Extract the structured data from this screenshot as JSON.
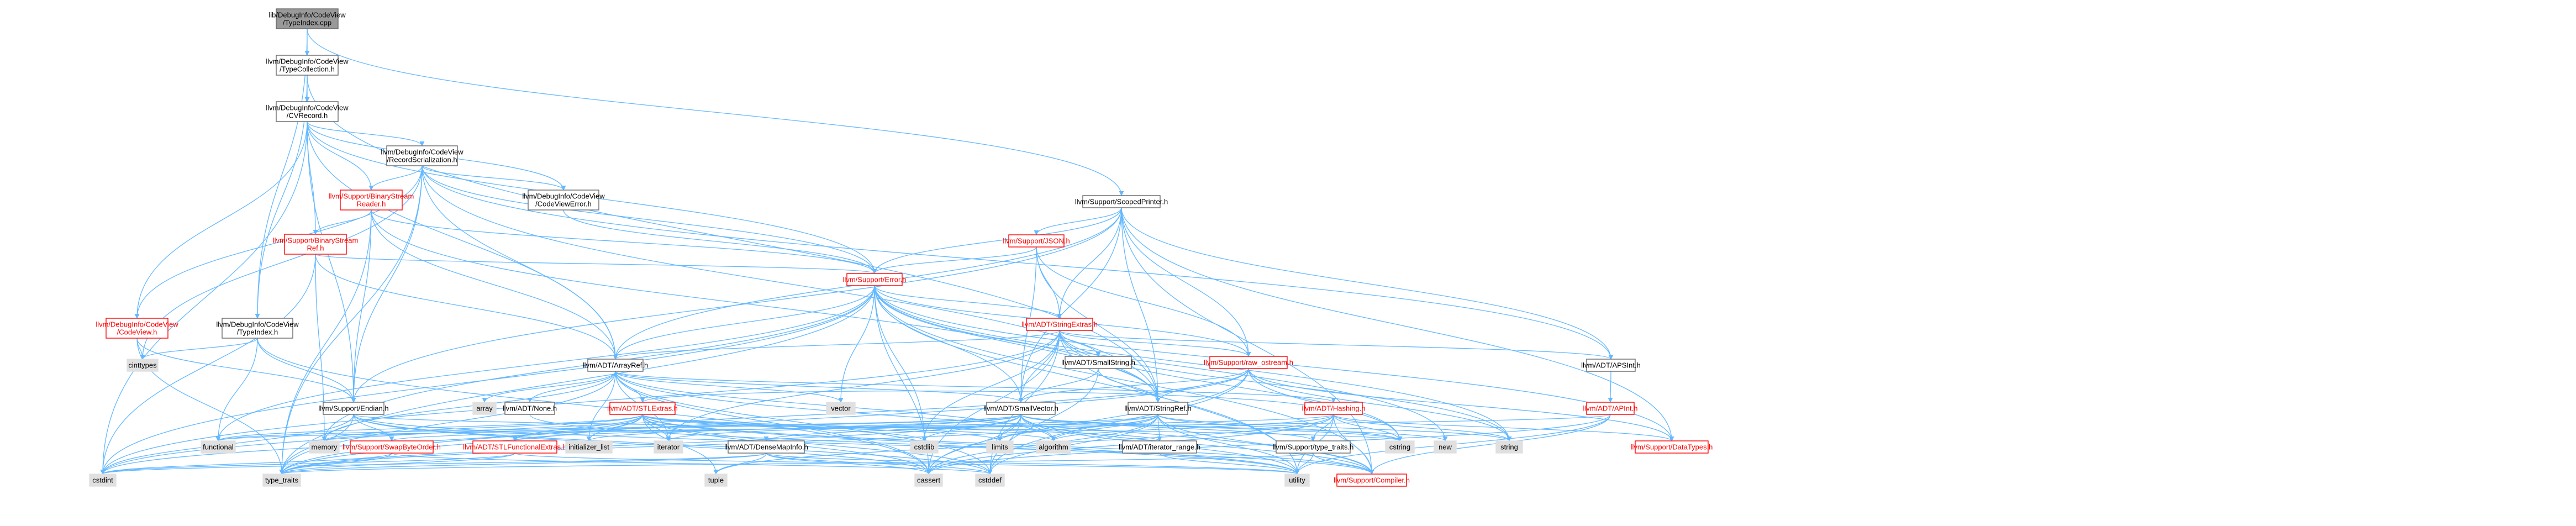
{
  "colors": {
    "edge": "#63b8ff",
    "node_border": "#666666",
    "root_fill": "#999999",
    "gray_fill": "#e0e0e0",
    "red_text": "#ff0000",
    "red_border": "#ff0000"
  },
  "nodes": [
    {
      "id": "root",
      "label": [
        "lib/DebugInfo/CodeView",
        "/TypeIndex.cpp"
      ],
      "style": "root"
    },
    {
      "id": "typecollection",
      "label": [
        "llvm/DebugInfo/CodeView",
        "/TypeCollection.h"
      ],
      "style": "normal"
    },
    {
      "id": "cvrecord",
      "label": [
        "llvm/DebugInfo/CodeView",
        "/CVRecord.h"
      ],
      "style": "normal"
    },
    {
      "id": "recordserialization",
      "label": [
        "llvm/DebugInfo/CodeView",
        "/RecordSerialization.h"
      ],
      "style": "normal"
    },
    {
      "id": "binarystreamreader",
      "label": [
        "llvm/Support/BinaryStream",
        "Reader.h"
      ],
      "style": "red"
    },
    {
      "id": "codeviewerror",
      "label": [
        "llvm/DebugInfo/CodeView",
        "/CodeViewError.h"
      ],
      "style": "normal"
    },
    {
      "id": "scopedprinter",
      "label": [
        "llvm/Support/ScopedPrinter.h"
      ],
      "style": "normal"
    },
    {
      "id": "binarystreamref",
      "label": [
        "llvm/Support/BinaryStream",
        "Ref.h"
      ],
      "style": "red"
    },
    {
      "id": "json",
      "label": [
        "llvm/Support/JSON.h"
      ],
      "style": "red"
    },
    {
      "id": "error",
      "label": [
        "llvm/Support/Error.h"
      ],
      "style": "red"
    },
    {
      "id": "codeview",
      "label": [
        "llvm/DebugInfo/CodeView",
        "/CodeView.h"
      ],
      "style": "red"
    },
    {
      "id": "typeindex",
      "label": [
        "llvm/DebugInfo/CodeView",
        "/TypeIndex.h"
      ],
      "style": "normal"
    },
    {
      "id": "stringextras",
      "label": [
        "llvm/ADT/StringExtras.h"
      ],
      "style": "red"
    },
    {
      "id": "smallstring",
      "label": [
        "llvm/ADT/SmallString.h"
      ],
      "style": "normal"
    },
    {
      "id": "arrayref",
      "label": [
        "llvm/ADT/ArrayRef.h"
      ],
      "style": "normal"
    },
    {
      "id": "raw_ostream",
      "label": [
        "llvm/Support/raw_ostream.h"
      ],
      "style": "red"
    },
    {
      "id": "apsint",
      "label": [
        "llvm/ADT/APSInt.h"
      ],
      "style": "normal"
    },
    {
      "id": "cinttypes",
      "label": [
        "cinttypes"
      ],
      "style": "gray"
    },
    {
      "id": "endian",
      "label": [
        "llvm/Support/Endian.h"
      ],
      "style": "normal"
    },
    {
      "id": "array",
      "label": [
        "array"
      ],
      "style": "gray"
    },
    {
      "id": "none",
      "label": [
        "llvm/ADT/None.h"
      ],
      "style": "normal"
    },
    {
      "id": "stlextras",
      "label": [
        "llvm/ADT/STLExtras.h"
      ],
      "style": "red"
    },
    {
      "id": "vector",
      "label": [
        "vector"
      ],
      "style": "gray"
    },
    {
      "id": "smallvector",
      "label": [
        "llvm/ADT/SmallVector.h"
      ],
      "style": "normal"
    },
    {
      "id": "stringref",
      "label": [
        "llvm/ADT/StringRef.h"
      ],
      "style": "normal"
    },
    {
      "id": "hashing",
      "label": [
        "llvm/ADT/Hashing.h"
      ],
      "style": "red"
    },
    {
      "id": "apint",
      "label": [
        "llvm/ADT/APInt.h"
      ],
      "style": "red"
    },
    {
      "id": "functional",
      "label": [
        "functional"
      ],
      "style": "gray"
    },
    {
      "id": "memory",
      "label": [
        "memory"
      ],
      "style": "gray"
    },
    {
      "id": "swapbyteorder",
      "label": [
        "llvm/Support/SwapByteOrder.h"
      ],
      "style": "red"
    },
    {
      "id": "stlfunctionalextras",
      "label": [
        "llvm/ADT/STLFunctionalExtras.h"
      ],
      "style": "red"
    },
    {
      "id": "initializer_list",
      "label": [
        "initializer_list"
      ],
      "style": "gray"
    },
    {
      "id": "iterator",
      "label": [
        "iterator"
      ],
      "style": "gray"
    },
    {
      "id": "densemapinfo",
      "label": [
        "llvm/ADT/DenseMapInfo.h"
      ],
      "style": "normal"
    },
    {
      "id": "cstdlib",
      "label": [
        "cstdlib"
      ],
      "style": "gray"
    },
    {
      "id": "limits",
      "label": [
        "limits"
      ],
      "style": "gray"
    },
    {
      "id": "algorithm",
      "label": [
        "algorithm"
      ],
      "style": "gray"
    },
    {
      "id": "iterator_range",
      "label": [
        "llvm/ADT/iterator_range.h"
      ],
      "style": "normal"
    },
    {
      "id": "type_traits_support",
      "label": [
        "llvm/Support/type_traits.h"
      ],
      "style": "normal"
    },
    {
      "id": "cstring",
      "label": [
        "cstring"
      ],
      "style": "gray"
    },
    {
      "id": "new",
      "label": [
        "new"
      ],
      "style": "gray"
    },
    {
      "id": "string",
      "label": [
        "string"
      ],
      "style": "gray"
    },
    {
      "id": "datatypes",
      "label": [
        "llvm/Support/DataTypes.h"
      ],
      "style": "red"
    },
    {
      "id": "cstdint",
      "label": [
        "cstdint"
      ],
      "style": "gray"
    },
    {
      "id": "type_traits",
      "label": [
        "type_traits"
      ],
      "style": "gray"
    },
    {
      "id": "tuple",
      "label": [
        "tuple"
      ],
      "style": "gray"
    },
    {
      "id": "cassert",
      "label": [
        "cassert"
      ],
      "style": "gray"
    },
    {
      "id": "cstddef",
      "label": [
        "cstddef"
      ],
      "style": "gray"
    },
    {
      "id": "utility",
      "label": [
        "utility"
      ],
      "style": "gray"
    },
    {
      "id": "compiler",
      "label": [
        "llvm/Support/Compiler.h"
      ],
      "style": "red"
    }
  ],
  "edges": [
    [
      "root",
      "typecollection"
    ],
    [
      "root",
      "typeindex"
    ],
    [
      "root",
      "scopedprinter"
    ],
    [
      "typecollection",
      "cvrecord"
    ],
    [
      "typecollection",
      "typeindex"
    ],
    [
      "typecollection",
      "stringref"
    ],
    [
      "cvrecord",
      "recordserialization"
    ],
    [
      "cvrecord",
      "binarystreamreader"
    ],
    [
      "cvrecord",
      "binarystreamref"
    ],
    [
      "cvrecord",
      "codeviewerror"
    ],
    [
      "cvrecord",
      "codeview"
    ],
    [
      "cvrecord",
      "error"
    ],
    [
      "cvrecord",
      "endian"
    ],
    [
      "cvrecord",
      "arrayref"
    ],
    [
      "cvrecord",
      "cstdint"
    ],
    [
      "recordserialization",
      "binarystreamreader"
    ],
    [
      "recordserialization",
      "codeviewerror"
    ],
    [
      "recordserialization",
      "codeview"
    ],
    [
      "recordserialization",
      "apsint"
    ],
    [
      "recordserialization",
      "arrayref"
    ],
    [
      "recordserialization",
      "stringref"
    ],
    [
      "recordserialization",
      "endian"
    ],
    [
      "recordserialization",
      "error"
    ],
    [
      "recordserialization",
      "cinttypes"
    ],
    [
      "recordserialization",
      "type_traits"
    ],
    [
      "binarystreamreader",
      "binarystreamref"
    ],
    [
      "binarystreamreader",
      "arrayref"
    ],
    [
      "binarystreamreader",
      "endian"
    ],
    [
      "binarystreamreader",
      "error"
    ],
    [
      "binarystreamreader",
      "stringref"
    ],
    [
      "binarystreamreader",
      "type_traits"
    ],
    [
      "codeviewerror",
      "error"
    ],
    [
      "binarystreamref",
      "arrayref"
    ],
    [
      "binarystreamref",
      "error"
    ],
    [
      "binarystreamref",
      "memory"
    ],
    [
      "binarystreamref",
      "cstdint"
    ],
    [
      "scopedprinter",
      "apsint"
    ],
    [
      "scopedprinter",
      "arrayref"
    ],
    [
      "scopedprinter",
      "smallvector"
    ],
    [
      "scopedprinter",
      "stringextras"
    ],
    [
      "scopedprinter",
      "stringref"
    ],
    [
      "scopedprinter",
      "json"
    ],
    [
      "scopedprinter",
      "raw_ostream"
    ],
    [
      "scopedprinter",
      "datatypes"
    ],
    [
      "scopedprinter",
      "compiler"
    ],
    [
      "scopedprinter",
      "endian"
    ],
    [
      "scopedprinter",
      "error"
    ],
    [
      "json",
      "stringextras"
    ],
    [
      "json",
      "error"
    ],
    [
      "json",
      "raw_ostream"
    ],
    [
      "json",
      "smallvector"
    ],
    [
      "json",
      "stringref"
    ],
    [
      "error",
      "stringextras"
    ],
    [
      "error",
      "twine_dummy_skip"
    ],
    [
      "error",
      "smallvector"
    ],
    [
      "error",
      "stringref"
    ],
    [
      "error",
      "raw_ostream"
    ],
    [
      "error",
      "datatypes"
    ],
    [
      "error",
      "compiler"
    ],
    [
      "error",
      "cassert"
    ],
    [
      "error",
      "cstdint"
    ],
    [
      "error",
      "cstdlib"
    ],
    [
      "error",
      "functional"
    ],
    [
      "error",
      "memory"
    ],
    [
      "error",
      "new"
    ],
    [
      "error",
      "string"
    ],
    [
      "error",
      "system_error_skip"
    ],
    [
      "error",
      "type_traits"
    ],
    [
      "error",
      "utility"
    ],
    [
      "error",
      "vector"
    ],
    [
      "error",
      "arrayref"
    ],
    [
      "codeview",
      "cinttypes"
    ],
    [
      "codeview",
      "type_traits"
    ],
    [
      "codeview",
      "endian"
    ],
    [
      "typeindex",
      "endian"
    ],
    [
      "typeindex",
      "cinttypes"
    ],
    [
      "typeindex",
      "cassert"
    ],
    [
      "typeindex",
      "functional"
    ],
    [
      "stringextras",
      "apsint"
    ],
    [
      "stringextras",
      "arrayref"
    ],
    [
      "stringextras",
      "smallstring"
    ],
    [
      "stringextras",
      "stringref"
    ],
    [
      "stringextras",
      "cassert"
    ],
    [
      "stringextras",
      "cstddef"
    ],
    [
      "stringextras",
      "cstdint"
    ],
    [
      "stringextras",
      "cstdlib"
    ],
    [
      "stringextras",
      "cstring"
    ],
    [
      "stringextras",
      "iterator"
    ],
    [
      "stringextras",
      "string"
    ],
    [
      "stringextras",
      "utility"
    ],
    [
      "stringextras",
      "raw_ostream"
    ],
    [
      "stringextras",
      "smallvector"
    ],
    [
      "smallstring",
      "smallvector"
    ],
    [
      "smallstring",
      "stringref"
    ],
    [
      "smallstring",
      "cstddef"
    ],
    [
      "arrayref",
      "hashing"
    ],
    [
      "arrayref",
      "none"
    ],
    [
      "arrayref",
      "smallvector"
    ],
    [
      "arrayref",
      "stlextras"
    ],
    [
      "arrayref",
      "compiler"
    ],
    [
      "arrayref",
      "algorithm"
    ],
    [
      "arrayref",
      "array"
    ],
    [
      "arrayref",
      "cassert"
    ],
    [
      "arrayref",
      "cstddef"
    ],
    [
      "arrayref",
      "initializer_list"
    ],
    [
      "arrayref",
      "iterator"
    ],
    [
      "arrayref",
      "memory"
    ],
    [
      "arrayref",
      "type_traits"
    ],
    [
      "arrayref",
      "vector"
    ],
    [
      "raw_ostream",
      "stringref"
    ],
    [
      "raw_ostream",
      "datatypes"
    ],
    [
      "raw_ostream",
      "cassert"
    ],
    [
      "raw_ostream",
      "cstddef"
    ],
    [
      "raw_ostream",
      "cstdint"
    ],
    [
      "raw_ostream",
      "cstring"
    ],
    [
      "raw_ostream",
      "string"
    ],
    [
      "raw_ostream",
      "type_traits"
    ],
    [
      "raw_ostream",
      "smallvector"
    ],
    [
      "apsint",
      "apint"
    ],
    [
      "apint",
      "compiler"
    ],
    [
      "apint",
      "cassert"
    ],
    [
      "apint",
      "utility"
    ],
    [
      "apint",
      "functional"
    ],
    [
      "endian",
      "swapbyteorder"
    ],
    [
      "endian",
      "compiler"
    ],
    [
      "endian",
      "cassert"
    ],
    [
      "endian",
      "cstddef"
    ],
    [
      "endian",
      "cstdint"
    ],
    [
      "endian",
      "cstring"
    ],
    [
      "endian",
      "type_traits"
    ],
    [
      "none",
      "utility"
    ],
    [
      "stlextras",
      "hashing"
    ],
    [
      "stlextras",
      "stlfunctionalextras"
    ],
    [
      "stlextras",
      "iterator_range"
    ],
    [
      "stlextras",
      "compiler"
    ],
    [
      "stlextras",
      "algorithm"
    ],
    [
      "stlextras",
      "cassert"
    ],
    [
      "stlextras",
      "cstddef"
    ],
    [
      "stlextras",
      "cstdint"
    ],
    [
      "stlextras",
      "cstdlib"
    ],
    [
      "stlextras",
      "functional"
    ],
    [
      "stlextras",
      "initializer_list"
    ],
    [
      "stlextras",
      "iterator"
    ],
    [
      "stlextras",
      "limits"
    ],
    [
      "stlextras",
      "memory"
    ],
    [
      "stlextras",
      "tuple"
    ],
    [
      "stlextras",
      "type_traits"
    ],
    [
      "stlextras",
      "utility"
    ],
    [
      "smallvector",
      "compiler"
    ],
    [
      "smallvector",
      "type_traits_support"
    ],
    [
      "smallvector",
      "algorithm"
    ],
    [
      "smallvector",
      "cassert"
    ],
    [
      "smallvector",
      "cstddef"
    ],
    [
      "smallvector",
      "cstdlib"
    ],
    [
      "smallvector",
      "cstring"
    ],
    [
      "smallvector",
      "functional"
    ],
    [
      "smallvector",
      "initializer_list"
    ],
    [
      "smallvector",
      "iterator"
    ],
    [
      "smallvector",
      "limits"
    ],
    [
      "smallvector",
      "memory"
    ],
    [
      "smallvector",
      "new"
    ],
    [
      "smallvector",
      "type_traits"
    ],
    [
      "smallvector",
      "utility"
    ],
    [
      "stringref",
      "densemapinfo"
    ],
    [
      "stringref",
      "stlfunctionalextras"
    ],
    [
      "stringref",
      "iterator_range"
    ],
    [
      "stringref",
      "compiler"
    ],
    [
      "stringref",
      "algorithm"
    ],
    [
      "stringref",
      "cassert"
    ],
    [
      "stringref",
      "cstddef"
    ],
    [
      "stringref",
      "cstring"
    ],
    [
      "stringref",
      "limits"
    ],
    [
      "stringref",
      "string"
    ],
    [
      "stringref",
      "type_traits"
    ],
    [
      "stringref",
      "utility"
    ],
    [
      "hashing",
      "compiler"
    ],
    [
      "hashing",
      "datatypes"
    ],
    [
      "hashing",
      "swapbyteorder"
    ],
    [
      "hashing",
      "type_traits_support"
    ],
    [
      "hashing",
      "algorithm"
    ],
    [
      "hashing",
      "cassert"
    ],
    [
      "hashing",
      "cstring"
    ],
    [
      "hashing",
      "string"
    ],
    [
      "hashing",
      "tuple"
    ],
    [
      "hashing",
      "utility"
    ],
    [
      "swapbyteorder",
      "cstddef"
    ],
    [
      "swapbyteorder",
      "cstdint"
    ],
    [
      "swapbyteorder",
      "type_traits"
    ],
    [
      "stlfunctionalextras",
      "type_traits"
    ],
    [
      "stlfunctionalextras",
      "cstdint"
    ],
    [
      "stlfunctionalextras",
      "utility"
    ],
    [
      "densemapinfo",
      "cassert"
    ],
    [
      "densemapinfo",
      "cstddef"
    ],
    [
      "densemapinfo",
      "cstdint"
    ],
    [
      "densemapinfo",
      "tuple"
    ],
    [
      "densemapinfo",
      "type_traits"
    ],
    [
      "densemapinfo",
      "utility"
    ],
    [
      "iterator_range",
      "utility"
    ],
    [
      "type_traits_support",
      "utility"
    ],
    [
      "type_traits_support",
      "type_traits"
    ],
    [
      "type_traits_support",
      "compiler"
    ],
    [
      "datatypes",
      "cinttypes_skip"
    ]
  ]
}
